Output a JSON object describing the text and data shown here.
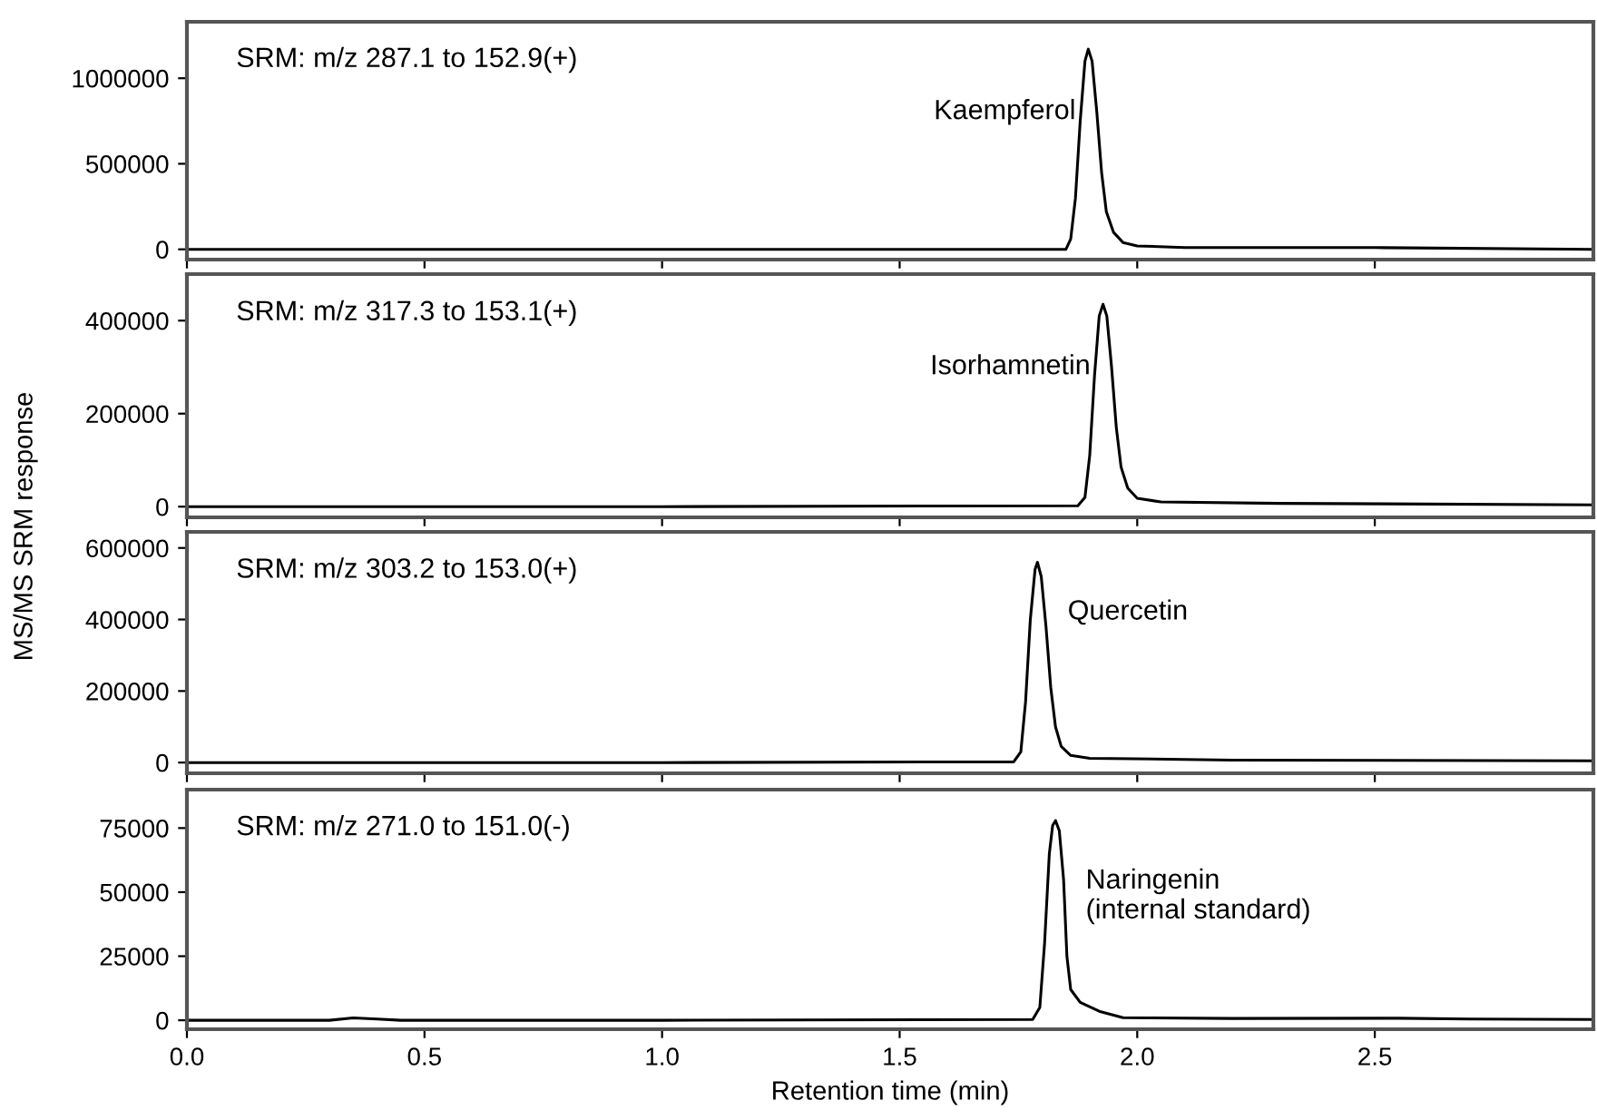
{
  "chart_data": [
    {
      "type": "line",
      "ylabel": "MS/MS SRM response",
      "tick_labels": "y",
      "xlim": [
        0,
        2.96
      ],
      "xticks": [
        0,
        0.5,
        1,
        1.5,
        2,
        2.5
      ],
      "ylim": [
        -60000,
        1330000
      ],
      "yticks": [
        0,
        500000,
        1000000
      ],
      "grid": false,
      "annotations": [
        "SRM: m/z 287.1 to 152.9(+)",
        {
          "text": "Kaempferol",
          "x": 1.897,
          "y": 1170000
        }
      ],
      "series": [
        {
          "color": "#000000",
          "x": [
            0,
            1.0,
            1.85,
            1.86,
            1.87,
            1.88,
            1.89,
            1.897,
            1.905,
            1.915,
            1.925,
            1.935,
            1.95,
            1.97,
            2.0,
            2.1,
            2.5,
            2.96
          ],
          "values": [
            0,
            0,
            0,
            60000,
            300000,
            750000,
            1100000,
            1170000,
            1100000,
            800000,
            450000,
            220000,
            100000,
            40000,
            20000,
            10000,
            10000,
            0
          ]
        }
      ]
    },
    {
      "type": "line",
      "tick_labels": "y",
      "xlim": [
        0,
        2.96
      ],
      "xticks": [
        0,
        0.5,
        1,
        1.5,
        2,
        2.5
      ],
      "ylim": [
        -23000,
        500000
      ],
      "yticks": [
        0,
        200000,
        400000
      ],
      "grid": false,
      "annotations": [
        "SRM: m/z 317.3 to 153.1(+)",
        {
          "text": "Isorhamnetin",
          "x": 1.928,
          "y": 435000
        }
      ],
      "series": [
        {
          "color": "#000000",
          "x": [
            0,
            1.0,
            1.875,
            1.89,
            1.9,
            1.91,
            1.92,
            1.928,
            1.936,
            1.946,
            1.956,
            1.966,
            1.98,
            2.0,
            2.05,
            2.3,
            2.96
          ],
          "values": [
            0,
            0,
            2000,
            20000,
            110000,
            280000,
            410000,
            435000,
            410000,
            300000,
            170000,
            85000,
            40000,
            18000,
            10000,
            7000,
            4000
          ]
        }
      ]
    },
    {
      "type": "line",
      "tick_labels": "y",
      "xlim": [
        0,
        2.96
      ],
      "xticks": [
        0,
        0.5,
        1,
        1.5,
        2,
        2.5
      ],
      "ylim": [
        -30000,
        645000
      ],
      "yticks": [
        0,
        200000,
        400000,
        600000
      ],
      "grid": false,
      "annotations": [
        "SRM: m/z 303.2 to 153.0(+)",
        {
          "text": "Quercetin",
          "x": 1.79,
          "y": 560000
        }
      ],
      "series": [
        {
          "color": "#000000",
          "x": [
            0,
            1.0,
            1.74,
            1.755,
            1.765,
            1.775,
            1.785,
            1.79,
            1.798,
            1.808,
            1.818,
            1.828,
            1.84,
            1.86,
            1.9,
            2.2,
            2.96
          ],
          "values": [
            0,
            0,
            2000,
            30000,
            170000,
            400000,
            540000,
            560000,
            520000,
            380000,
            210000,
            100000,
            45000,
            20000,
            12000,
            7000,
            5000
          ]
        }
      ]
    },
    {
      "type": "line",
      "xlabel": "Retention time (min)",
      "xlim": [
        0,
        2.96
      ],
      "xticks": [
        {
          "value": 0,
          "label": "0.0"
        },
        0.5,
        {
          "value": 1,
          "label": "1.0"
        },
        1.5,
        {
          "value": 2,
          "label": "2.0"
        },
        2.5
      ],
      "ylim": [
        -3500,
        90000
      ],
      "yticks": [
        0,
        25000,
        50000,
        75000
      ],
      "grid": false,
      "annotations": [
        "SRM: m/z 271.0 to 151.0(-)",
        {
          "text": "Naringenin\n(internal standard)",
          "x": 1.828,
          "y": 77900
        }
      ],
      "series": [
        {
          "color": "#000000",
          "x": [
            0,
            0.3,
            0.35,
            0.4,
            0.45,
            1.0,
            1.78,
            1.795,
            1.805,
            1.815,
            1.822,
            1.828,
            1.836,
            1.845,
            1.852,
            1.86,
            1.88,
            1.92,
            1.97,
            2.2,
            2.55,
            2.7,
            2.96
          ],
          "values": [
            0,
            0,
            900,
            500,
            0,
            0,
            300,
            5000,
            30000,
            65000,
            76000,
            77900,
            74000,
            55000,
            25000,
            12000,
            7000,
            3500,
            1000,
            700,
            800,
            500,
            300
          ]
        }
      ]
    }
  ]
}
